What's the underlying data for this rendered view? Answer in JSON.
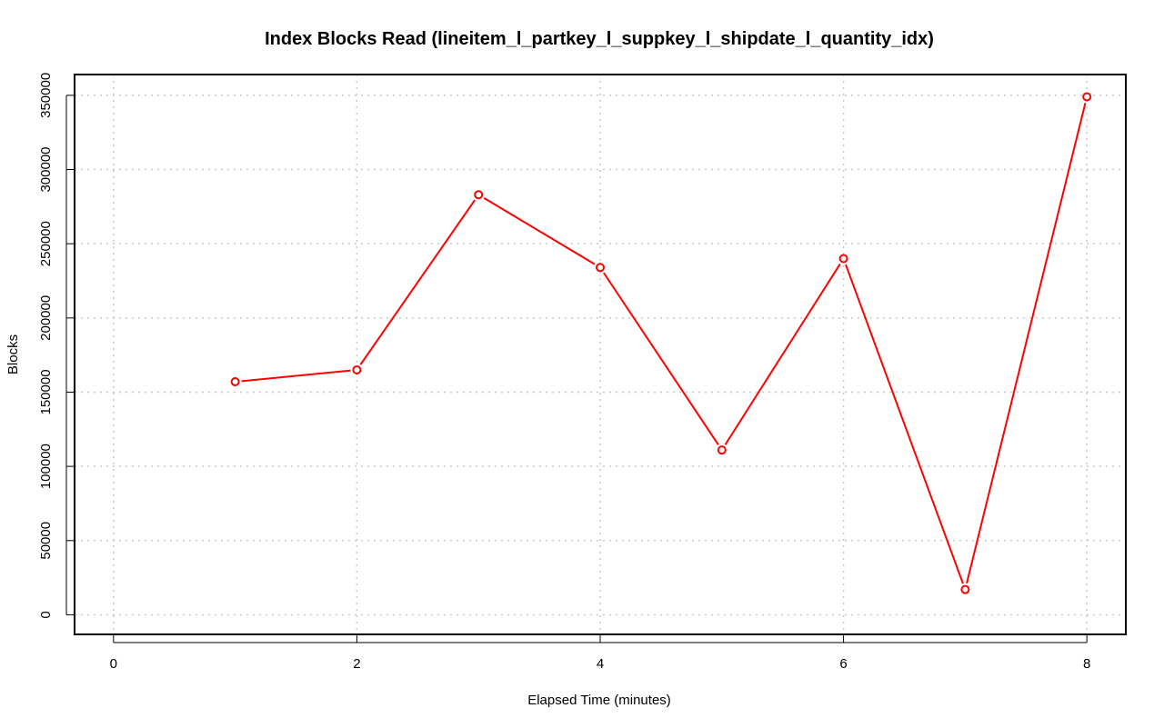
{
  "chart_data": {
    "type": "line",
    "title": "Index Blocks Read (lineitem_l_partkey_l_suppkey_l_shipdate_l_quantity_idx)",
    "xlabel": "Elapsed Time (minutes)",
    "ylabel": "Blocks",
    "xlim": [
      -0.32,
      8.32
    ],
    "ylim": [
      -13200,
      364000
    ],
    "x_ticks": [
      0,
      2,
      4,
      6,
      8
    ],
    "y_ticks": [
      0,
      50000,
      100000,
      150000,
      200000,
      250000,
      300000,
      350000
    ],
    "grid": true,
    "series": [
      {
        "color": "#ff0000",
        "marker": "open-circle",
        "x": [
          1,
          2,
          3,
          4,
          5,
          6,
          7,
          8
        ],
        "y": [
          157000,
          165000,
          283000,
          234000,
          111000,
          240000,
          17000,
          349000
        ]
      }
    ]
  }
}
